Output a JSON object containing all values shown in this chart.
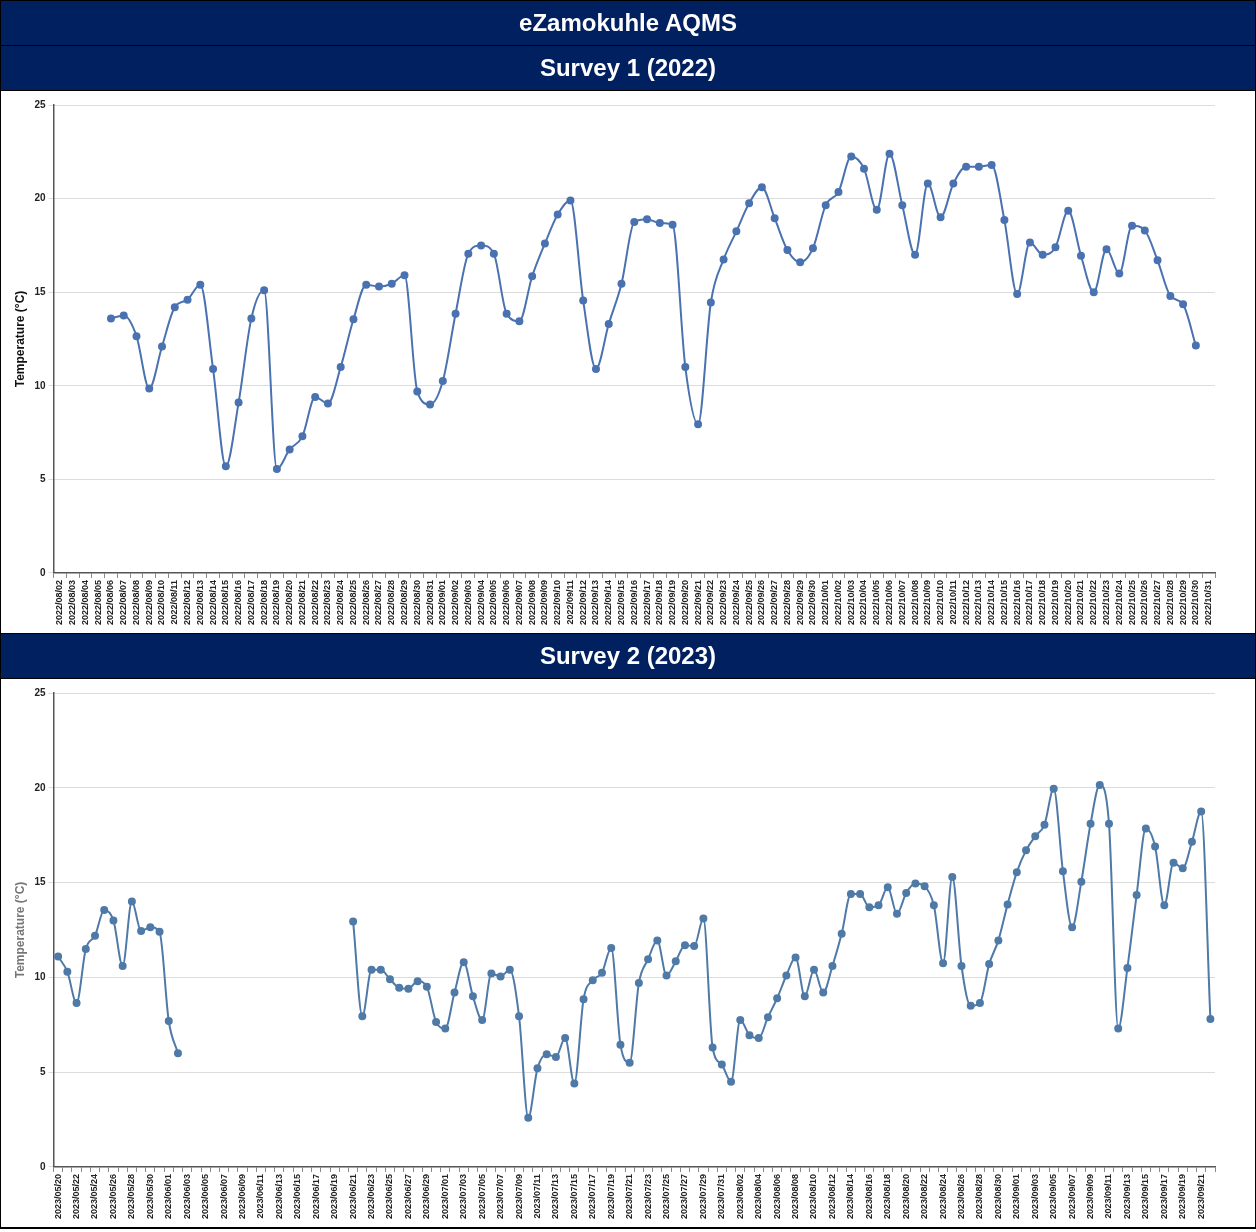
{
  "chart_data": [
    {
      "type": "line",
      "title": "eZamokuhle AQMS",
      "subtitle": "Survey 1 (2022)",
      "ylabel": "Temperature (°C)",
      "categories": [
        "2022/08/02",
        "2022/08/03",
        "2022/08/04",
        "2022/08/05",
        "2022/08/06",
        "2022/08/07",
        "2022/08/08",
        "2022/08/09",
        "2022/08/10",
        "2022/08/11",
        "2022/08/12",
        "2022/08/13",
        "2022/08/14",
        "2022/08/15",
        "2022/08/16",
        "2022/08/17",
        "2022/08/18",
        "2022/08/19",
        "2022/08/20",
        "2022/08/21",
        "2022/08/22",
        "2022/08/23",
        "2022/08/24",
        "2022/08/25",
        "2022/08/26",
        "2022/08/27",
        "2022/08/28",
        "2022/08/29",
        "2022/08/30",
        "2022/08/31",
        "2022/09/01",
        "2022/09/02",
        "2022/09/03",
        "2022/09/04",
        "2022/09/05",
        "2022/09/06",
        "2022/09/07",
        "2022/09/08",
        "2022/09/09",
        "2022/09/10",
        "2022/09/11",
        "2022/09/12",
        "2022/09/13",
        "2022/09/14",
        "2022/09/15",
        "2022/09/16",
        "2022/09/17",
        "2022/09/18",
        "2022/09/19",
        "2022/09/20",
        "2022/09/21",
        "2022/09/22",
        "2022/09/23",
        "2022/09/24",
        "2022/09/25",
        "2022/09/26",
        "2022/09/27",
        "2022/09/28",
        "2022/09/29",
        "2022/09/30",
        "2022/10/01",
        "2022/10/02",
        "2022/10/03",
        "2022/10/04",
        "2022/10/05",
        "2022/10/06",
        "2022/10/07",
        "2022/10/08",
        "2022/10/09",
        "2022/10/10",
        "2022/10/11",
        "2022/10/12",
        "2022/10/13",
        "2022/10/14",
        "2022/10/15",
        "2022/10/16",
        "2022/10/17",
        "2022/10/18",
        "2022/10/19",
        "2022/10/20",
        "2022/10/21",
        "2022/10/22",
        "2022/10/23",
        "2022/10/24",
        "2022/10/25",
        "2022/10/26",
        "2022/10/27",
        "2022/10/28",
        "2022/10/29",
        "2022/10/30",
        "2022/10/31"
      ],
      "series": [
        {
          "color": "#4a72b0",
          "values": [
            null,
            null,
            null,
            null,
            13.6,
            13.75,
            12.65,
            9.85,
            12.1,
            14.2,
            14.6,
            15.4,
            10.9,
            5.7,
            9.1,
            13.6,
            15.1,
            5.55,
            6.6,
            7.3,
            9.4,
            9.05,
            11.0,
            13.55,
            15.4,
            15.3,
            15.45,
            15.9,
            9.7,
            9.0,
            10.25,
            13.85,
            17.05,
            17.5,
            17.05,
            13.85,
            13.45,
            15.85,
            17.6,
            19.15,
            19.9,
            14.55,
            10.9,
            13.3,
            15.45,
            18.75,
            18.9,
            18.7,
            18.6,
            11.0,
            7.95,
            14.45,
            16.75,
            18.25,
            19.75,
            20.6,
            18.95,
            17.25,
            16.6,
            17.35,
            19.65,
            20.35,
            22.25,
            21.6,
            19.4,
            22.4,
            19.65,
            17.0,
            20.8,
            19.0,
            20.8,
            21.7,
            21.7,
            21.8,
            18.85,
            14.9,
            17.65,
            17.0,
            17.4,
            19.35,
            16.95,
            15.0,
            17.3,
            16.0,
            18.55,
            18.3,
            16.7,
            14.8,
            14.35,
            12.15,
            null
          ]
        }
      ],
      "ylim": [
        0,
        25
      ],
      "yticks": [
        0,
        5,
        10,
        15,
        20,
        25
      ],
      "grid": "y",
      "marker": "circle",
      "line_style": "solid"
    },
    {
      "type": "line",
      "title": "Survey 2 (2023)",
      "ylabel": "Temperature (°C)",
      "categories": [
        "2023/05/20",
        null,
        "2023/05/22",
        null,
        "2023/05/24",
        null,
        "2023/05/26",
        null,
        "2023/05/28",
        null,
        "2023/05/30",
        null,
        "2023/06/01",
        null,
        "2023/06/03",
        null,
        "2023/06/05",
        null,
        "2023/06/07",
        null,
        "2023/06/09",
        null,
        "2023/06/11",
        null,
        "2023/06/13",
        null,
        "2023/06/15",
        null,
        "2023/06/17",
        null,
        "2023/06/19",
        null,
        "2023/06/21",
        null,
        "2023/06/23",
        null,
        "2023/06/25",
        null,
        "2023/06/27",
        null,
        "2023/06/29",
        null,
        "2023/07/01",
        null,
        "2023/07/03",
        null,
        "2023/07/05",
        null,
        "2023/07/07",
        null,
        "2023/07/09",
        null,
        "2023/07/11",
        null,
        "2023/07/13",
        null,
        "2023/07/15",
        null,
        "2023/07/17",
        null,
        "2023/07/19",
        null,
        "2023/07/21",
        null,
        "2023/07/23",
        null,
        "2023/07/25",
        null,
        "2023/07/27",
        null,
        "2023/07/29",
        null,
        "2023/07/31",
        null,
        "2023/08/02",
        null,
        "2023/08/04",
        null,
        "2023/08/06",
        null,
        "2023/08/08",
        null,
        "2023/08/10",
        null,
        "2023/08/12",
        null,
        "2023/08/14",
        null,
        "2023/08/16",
        null,
        "2023/08/18",
        null,
        "2023/08/20",
        null,
        "2023/08/22",
        null,
        "2023/08/24",
        null,
        "2023/08/26",
        null,
        "2023/08/28",
        null,
        "2023/08/30",
        null,
        "2023/09/01",
        null,
        "2023/09/03",
        null,
        "2023/09/05",
        null,
        "2023/09/07",
        null,
        "2023/09/09",
        null,
        "2023/09/11",
        null,
        "2023/09/13",
        null,
        "2023/09/15",
        null,
        "2023/09/17",
        null,
        "2023/09/19",
        null,
        "2023/09/21",
        null
      ],
      "series": [
        {
          "color": "#4f7aa7",
          "values": [
            11.1,
            10.3,
            8.65,
            11.5,
            12.2,
            13.55,
            13.0,
            10.6,
            14.0,
            12.45,
            12.65,
            12.4,
            7.7,
            6.0,
            null,
            null,
            null,
            null,
            null,
            null,
            null,
            null,
            null,
            null,
            null,
            null,
            null,
            null,
            null,
            null,
            null,
            null,
            12.95,
            7.95,
            10.4,
            10.4,
            9.9,
            9.45,
            9.4,
            9.8,
            9.5,
            7.65,
            7.3,
            9.2,
            10.8,
            9.0,
            7.75,
            10.2,
            10.05,
            10.4,
            7.95,
            2.6,
            5.2,
            5.95,
            5.8,
            6.8,
            4.4,
            8.85,
            9.85,
            10.25,
            11.55,
            6.45,
            5.5,
            9.7,
            10.95,
            11.95,
            10.1,
            10.85,
            11.7,
            11.65,
            13.1,
            6.3,
            5.4,
            4.5,
            7.75,
            6.95,
            6.8,
            7.9,
            8.9,
            10.1,
            11.05,
            9.0,
            10.4,
            9.2,
            10.6,
            12.3,
            14.4,
            14.4,
            13.7,
            13.8,
            14.75,
            13.35,
            14.45,
            14.95,
            14.8,
            13.8,
            10.75,
            15.3,
            10.6,
            8.5,
            8.65,
            10.7,
            11.95,
            13.85,
            15.55,
            16.7,
            17.45,
            18.05,
            19.95,
            15.6,
            12.65,
            15.05,
            18.1,
            20.15,
            18.1,
            7.3,
            10.5,
            14.35,
            17.85,
            16.9,
            13.8,
            16.05,
            15.75,
            17.15,
            18.75,
            7.8
          ]
        }
      ],
      "ylim": [
        0,
        25
      ],
      "yticks": [
        0,
        5,
        10,
        15,
        20,
        25
      ],
      "grid": "y",
      "marker": "circle",
      "line_style": "solid"
    }
  ]
}
